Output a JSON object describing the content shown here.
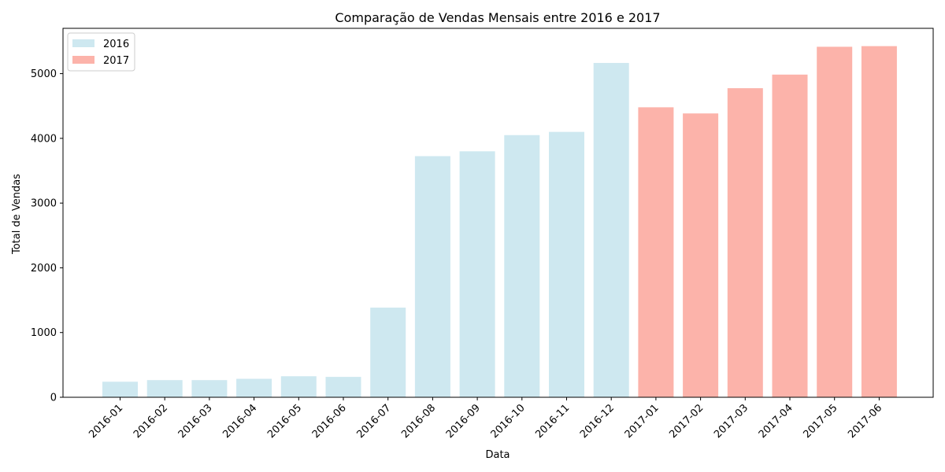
{
  "chart_data": {
    "type": "bar",
    "title": "Comparação de Vendas Mensais entre 2016 e 2017",
    "xlabel": "Data",
    "ylabel": "Total de Vendas",
    "ylim": [
      0,
      5700
    ],
    "yticks": [
      0,
      1000,
      2000,
      3000,
      4000,
      5000
    ],
    "grid": false,
    "legend_position": "top-left",
    "categories": [
      "2016-01",
      "2016-02",
      "2016-03",
      "2016-04",
      "2016-05",
      "2016-06",
      "2016-07",
      "2016-08",
      "2016-09",
      "2016-10",
      "2016-11",
      "2016-12",
      "2017-01",
      "2017-02",
      "2017-03",
      "2017-04",
      "2017-05",
      "2017-06"
    ],
    "series": [
      {
        "name": "2016",
        "color": "#add8e6",
        "values": [
          240,
          265,
          265,
          285,
          325,
          315,
          1385,
          3725,
          3800,
          4050,
          4100,
          5165,
          null,
          null,
          null,
          null,
          null,
          null
        ]
      },
      {
        "name": "2017",
        "color": "#fa8072",
        "values": [
          null,
          null,
          null,
          null,
          null,
          null,
          null,
          null,
          null,
          null,
          null,
          null,
          4480,
          4385,
          4775,
          4985,
          5415,
          5425
        ]
      }
    ]
  }
}
